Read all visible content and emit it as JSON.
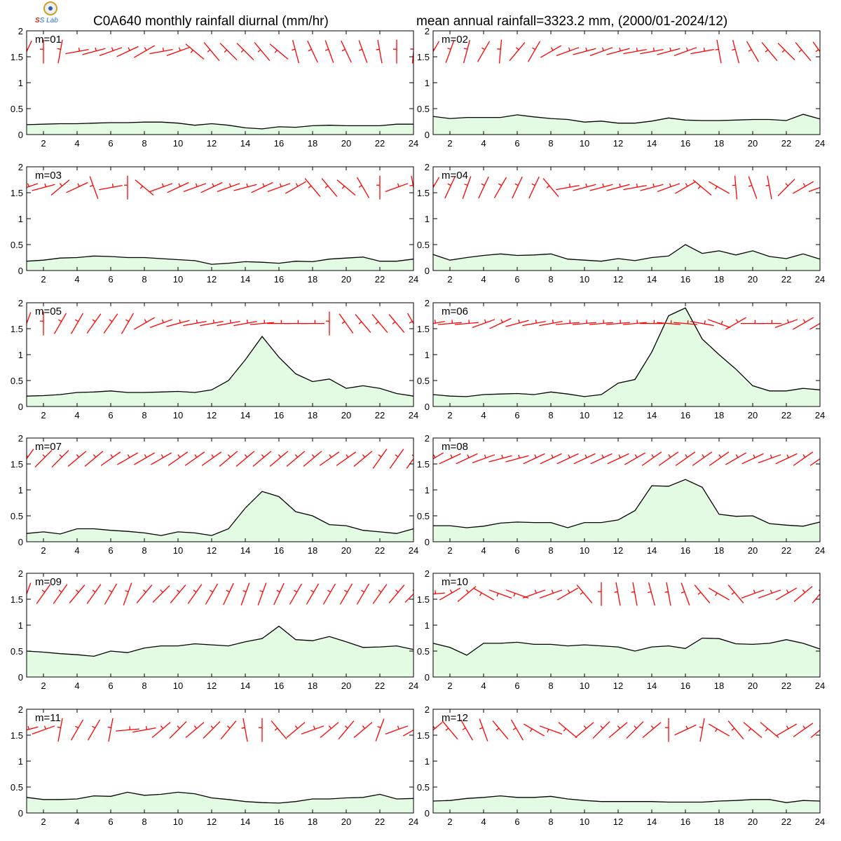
{
  "header": {
    "title_left": "C0A640 monthly rainfall diurnal (mm/hr)",
    "title_right": "mean annual rainfall=3323.2 mm, (2000/01-2024/12)",
    "logo_text": "SS Lab"
  },
  "chart_data": {
    "type": "area",
    "layout": "6 rows x 2 columns",
    "xlim": [
      1,
      24
    ],
    "ylim": [
      0,
      2
    ],
    "xticks": [
      2,
      4,
      6,
      8,
      10,
      12,
      14,
      16,
      18,
      20,
      22,
      24
    ],
    "yticks": [
      0,
      0.5,
      1,
      1.5,
      2
    ],
    "ytick_labels": [
      "0",
      "0.5",
      "1",
      "1.5",
      "2"
    ],
    "x": [
      1,
      2,
      3,
      4,
      5,
      6,
      7,
      8,
      9,
      10,
      11,
      12,
      13,
      14,
      15,
      16,
      17,
      18,
      19,
      20,
      21,
      22,
      23,
      24
    ],
    "fill_color": "#e3fbe3",
    "line_color": "#000000",
    "wind_marker_color": "#ff0000",
    "wind_marker_level": 1.6,
    "panels": [
      {
        "label": "m=01",
        "values": [
          0.19,
          0.2,
          0.21,
          0.21,
          0.22,
          0.23,
          0.23,
          0.24,
          0.24,
          0.22,
          0.18,
          0.21,
          0.18,
          0.13,
          0.11,
          0.15,
          0.14,
          0.17,
          0.18,
          0.17,
          0.17,
          0.17,
          0.2,
          0.2
        ],
        "wind_angles": [
          65,
          90,
          80,
          10,
          15,
          20,
          25,
          30,
          10,
          20,
          140,
          130,
          135,
          135,
          130,
          140,
          105,
          115,
          110,
          115,
          110,
          100,
          90,
          85
        ]
      },
      {
        "label": "m=02",
        "values": [
          0.35,
          0.31,
          0.33,
          0.33,
          0.33,
          0.38,
          0.34,
          0.31,
          0.29,
          0.24,
          0.26,
          0.22,
          0.22,
          0.26,
          0.32,
          0.28,
          0.27,
          0.27,
          0.28,
          0.29,
          0.29,
          0.27,
          0.39,
          0.3
        ],
        "wind_angles": [
          60,
          70,
          75,
          60,
          85,
          50,
          60,
          30,
          20,
          15,
          20,
          15,
          10,
          10,
          15,
          20,
          10,
          100,
          105,
          120,
          130,
          135,
          130,
          125
        ]
      },
      {
        "label": "m=03",
        "values": [
          0.18,
          0.2,
          0.24,
          0.25,
          0.28,
          0.27,
          0.25,
          0.25,
          0.23,
          0.21,
          0.19,
          0.12,
          0.14,
          0.17,
          0.16,
          0.14,
          0.18,
          0.17,
          0.22,
          0.24,
          0.26,
          0.18,
          0.18,
          0.22
        ],
        "wind_angles": [
          20,
          15,
          40,
          25,
          110,
          10,
          90,
          140,
          20,
          25,
          20,
          25,
          20,
          15,
          25,
          20,
          30,
          130,
          130,
          140,
          120,
          90,
          20,
          100
        ]
      },
      {
        "label": "m=04",
        "values": [
          0.31,
          0.2,
          0.25,
          0.29,
          0.32,
          0.29,
          0.3,
          0.32,
          0.22,
          0.2,
          0.18,
          0.23,
          0.19,
          0.25,
          0.28,
          0.5,
          0.33,
          0.38,
          0.3,
          0.38,
          0.27,
          0.23,
          0.32,
          0.22
        ],
        "wind_angles": [
          60,
          65,
          70,
          65,
          60,
          65,
          65,
          130,
          10,
          15,
          15,
          15,
          10,
          15,
          20,
          30,
          140,
          150,
          95,
          110,
          100,
          45,
          30,
          20
        ]
      },
      {
        "label": "m=05",
        "values": [
          0.2,
          0.21,
          0.23,
          0.27,
          0.28,
          0.3,
          0.27,
          0.27,
          0.28,
          0.29,
          0.27,
          0.32,
          0.5,
          0.9,
          1.35,
          0.95,
          0.63,
          0.48,
          0.53,
          0.35,
          0.4,
          0.35,
          0.25,
          0.2
        ],
        "wind_angles": [
          70,
          90,
          60,
          60,
          55,
          55,
          60,
          30,
          20,
          15,
          10,
          10,
          10,
          10,
          5,
          0,
          0,
          0,
          90,
          125,
          130,
          130,
          130,
          120
        ]
      },
      {
        "label": "m=06",
        "values": [
          0.23,
          0.2,
          0.19,
          0.23,
          0.24,
          0.25,
          0.23,
          0.28,
          0.24,
          0.19,
          0.23,
          0.45,
          0.52,
          1.05,
          1.75,
          1.9,
          1.3,
          1.0,
          0.72,
          0.4,
          0.3,
          0.3,
          0.35,
          0.32
        ],
        "wind_angles": [
          10,
          5,
          5,
          20,
          25,
          15,
          10,
          10,
          5,
          5,
          5,
          5,
          5,
          0,
          -5,
          -5,
          -10,
          -20,
          30,
          0,
          0,
          20,
          30,
          30
        ]
      },
      {
        "label": "m=07",
        "values": [
          0.16,
          0.19,
          0.15,
          0.25,
          0.25,
          0.22,
          0.2,
          0.17,
          0.12,
          0.19,
          0.17,
          0.12,
          0.25,
          0.65,
          0.97,
          0.87,
          0.58,
          0.5,
          0.33,
          0.31,
          0.22,
          0.19,
          0.16,
          0.25
        ],
        "wind_angles": [
          55,
          45,
          45,
          40,
          40,
          35,
          30,
          30,
          30,
          35,
          35,
          35,
          40,
          40,
          40,
          40,
          40,
          40,
          35,
          35,
          40,
          55,
          55,
          55
        ]
      },
      {
        "label": "m=08",
        "values": [
          0.31,
          0.31,
          0.27,
          0.3,
          0.36,
          0.38,
          0.37,
          0.37,
          0.27,
          0.37,
          0.37,
          0.42,
          0.6,
          1.08,
          1.07,
          1.2,
          1.05,
          0.53,
          0.49,
          0.5,
          0.35,
          0.32,
          0.3,
          0.38
        ],
        "wind_angles": [
          30,
          25,
          25,
          20,
          15,
          15,
          25,
          25,
          25,
          25,
          25,
          25,
          30,
          35,
          35,
          35,
          35,
          35,
          30,
          25,
          20,
          25,
          35,
          35
        ]
      },
      {
        "label": "m=09",
        "values": [
          0.5,
          0.48,
          0.45,
          0.43,
          0.4,
          0.5,
          0.47,
          0.56,
          0.6,
          0.6,
          0.64,
          0.62,
          0.6,
          0.68,
          0.74,
          0.98,
          0.72,
          0.7,
          0.78,
          0.68,
          0.57,
          0.58,
          0.6,
          0.53
        ],
        "wind_angles": [
          70,
          55,
          55,
          50,
          55,
          60,
          70,
          50,
          45,
          50,
          55,
          60,
          65,
          70,
          70,
          65,
          60,
          60,
          60,
          60,
          60,
          55,
          50,
          45
        ]
      },
      {
        "label": "m=10",
        "values": [
          0.65,
          0.57,
          0.42,
          0.65,
          0.65,
          0.67,
          0.63,
          0.63,
          0.6,
          0.62,
          0.6,
          0.58,
          0.5,
          0.58,
          0.6,
          0.55,
          0.75,
          0.74,
          0.64,
          0.63,
          0.65,
          0.72,
          0.65,
          0.54
        ],
        "wind_angles": [
          5,
          30,
          40,
          150,
          160,
          160,
          20,
          20,
          30,
          130,
          90,
          100,
          100,
          105,
          100,
          110,
          130,
          150,
          130,
          20,
          20,
          30,
          40,
          50
        ]
      },
      {
        "label": "m=11",
        "values": [
          0.3,
          0.26,
          0.26,
          0.27,
          0.33,
          0.32,
          0.4,
          0.34,
          0.36,
          0.4,
          0.37,
          0.29,
          0.26,
          0.22,
          0.2,
          0.19,
          0.22,
          0.27,
          0.27,
          0.29,
          0.3,
          0.36,
          0.27,
          0.28
        ],
        "wind_angles": [
          15,
          20,
          80,
          60,
          60,
          80,
          5,
          10,
          40,
          45,
          40,
          45,
          50,
          100,
          90,
          130,
          40,
          20,
          40,
          50,
          40,
          70,
          20,
          30
        ]
      },
      {
        "label": "m=12",
        "values": [
          0.23,
          0.24,
          0.28,
          0.3,
          0.33,
          0.3,
          0.3,
          0.32,
          0.27,
          0.24,
          0.22,
          0.22,
          0.22,
          0.22,
          0.21,
          0.21,
          0.21,
          0.23,
          0.24,
          0.26,
          0.26,
          0.2,
          0.24,
          0.23
        ],
        "wind_angles": [
          40,
          130,
          120,
          110,
          130,
          120,
          150,
          160,
          140,
          40,
          45,
          40,
          45,
          40,
          90,
          25,
          80,
          150,
          130,
          140,
          140,
          30,
          35,
          40
        ]
      }
    ]
  }
}
